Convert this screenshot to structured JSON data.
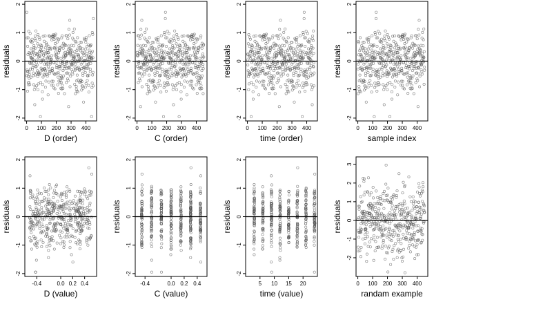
{
  "figure": {
    "background": "#ffffff",
    "point_color": "#555555"
  },
  "chart_data": [
    {
      "type": "scatter",
      "xlabel": "D (order)",
      "ylabel": "residuals",
      "xlim": [
        -12,
        472
      ],
      "ylim": [
        -2.1,
        2.1
      ],
      "x_ticks": [
        0,
        100,
        200,
        300,
        400
      ],
      "x_tick_labels": [
        "0",
        "100",
        "200",
        "300",
        "400"
      ],
      "y_ticks": [
        -2,
        -1,
        0,
        1,
        2
      ],
      "y_tick_labels": [
        "-2",
        "-1",
        "0",
        "1",
        "2"
      ],
      "reference_line_y": 0,
      "points": "residuals_by_order",
      "x_mode": "order"
    },
    {
      "type": "scatter",
      "xlabel": "C (order)",
      "ylabel": "residuals",
      "xlim": [
        -12,
        472
      ],
      "ylim": [
        -2.1,
        2.1
      ],
      "x_ticks": [
        0,
        100,
        200,
        300,
        400
      ],
      "x_tick_labels": [
        "0",
        "100",
        "200",
        "300",
        "400"
      ],
      "y_ticks": [
        -2,
        -1,
        0,
        1,
        2
      ],
      "y_tick_labels": [
        "-2",
        "-1",
        "0",
        "1",
        "2"
      ],
      "reference_line_y": 0,
      "points": "residuals_by_order",
      "x_mode": "order"
    },
    {
      "type": "scatter",
      "xlabel": "time (order)",
      "ylabel": "residuals",
      "xlim": [
        -12,
        472
      ],
      "ylim": [
        -2.1,
        2.1
      ],
      "x_ticks": [
        0,
        100,
        200,
        300,
        400
      ],
      "x_tick_labels": [
        "0",
        "100",
        "200",
        "300",
        "400"
      ],
      "y_ticks": [
        -2,
        -1,
        0,
        1,
        2
      ],
      "y_tick_labels": [
        "-2",
        "-1",
        "0",
        "1",
        "2"
      ],
      "reference_line_y": 0,
      "points": "residuals_by_order",
      "x_mode": "order"
    },
    {
      "type": "scatter",
      "xlabel": "sample index",
      "ylabel": "residuals",
      "xlim": [
        -12,
        472
      ],
      "ylim": [
        -2.1,
        2.1
      ],
      "x_ticks": [
        0,
        100,
        200,
        300,
        400
      ],
      "x_tick_labels": [
        "0",
        "100",
        "200",
        "300",
        "400"
      ],
      "y_ticks": [
        -2,
        -1,
        0,
        1,
        2
      ],
      "y_tick_labels": [
        "-2",
        "-1",
        "0",
        "1",
        "2"
      ],
      "reference_line_y": 0,
      "points": "residuals_by_order",
      "x_mode": "order"
    },
    {
      "type": "scatter",
      "xlabel": "D (value)",
      "ylabel": "residuals",
      "xlim": [
        -0.6,
        0.6
      ],
      "ylim": [
        -2.1,
        2.1
      ],
      "x_ticks": [
        -0.4,
        0.0,
        0.2,
        0.4
      ],
      "x_tick_labels": [
        "-0.4",
        "0.0",
        "0.2",
        "0.4"
      ],
      "y_ticks": [
        -2,
        -1,
        0,
        1,
        2
      ],
      "y_tick_labels": [
        "-2",
        "-1",
        "0",
        "1",
        "2"
      ],
      "reference_line_y": 0,
      "points": "residuals_by_value",
      "x_mode": "continuous"
    },
    {
      "type": "scatter",
      "xlabel": "C (value)",
      "ylabel": "residuals",
      "xlim": [
        -0.55,
        0.55
      ],
      "ylim": [
        -2.1,
        2.1
      ],
      "x_ticks": [
        -0.4,
        0.0,
        0.2,
        0.4
      ],
      "x_tick_labels": [
        "-0.4",
        "0.0",
        "0.2",
        "0.4"
      ],
      "y_ticks": [
        -2,
        -1,
        0,
        1,
        2
      ],
      "y_tick_labels": [
        "-2",
        "-1",
        "0",
        "1",
        "2"
      ],
      "reference_line_y": 0,
      "points": "residuals_by_value",
      "x_mode": "discrete",
      "x_levels": [
        -0.45,
        -0.3,
        -0.15,
        0.0,
        0.15,
        0.3,
        0.45
      ]
    },
    {
      "type": "scatter",
      "xlabel": "time (value)",
      "ylabel": "residuals",
      "xlim": [
        0,
        25
      ],
      "ylim": [
        -2.1,
        2.1
      ],
      "x_ticks": [
        5,
        10,
        15,
        20
      ],
      "x_tick_labels": [
        "5",
        "10",
        "15",
        "20"
      ],
      "y_ticks": [
        -2,
        -1,
        0,
        1,
        2
      ],
      "y_tick_labels": [
        "-2",
        "-1",
        "0",
        "1",
        "2"
      ],
      "reference_line_y": 0,
      "points": "residuals_by_value",
      "x_mode": "discrete",
      "x_levels": [
        3,
        6,
        9,
        12,
        15,
        18,
        21,
        24
      ]
    },
    {
      "type": "scatter",
      "xlabel": "randam example",
      "ylabel": "residuals",
      "xlim": [
        -12,
        472
      ],
      "ylim": [
        -3.0,
        3.4
      ],
      "x_ticks": [
        0,
        100,
        200,
        300,
        400
      ],
      "x_tick_labels": [
        "0",
        "100",
        "200",
        "300",
        "400"
      ],
      "y_ticks": [
        -2,
        -1,
        0,
        1,
        2,
        3
      ],
      "y_tick_labels": [
        "-2",
        "-1",
        "0",
        "1",
        "2",
        "3"
      ],
      "reference_line_y": 0,
      "points": "random_normal_sample",
      "x_mode": "order"
    }
  ]
}
